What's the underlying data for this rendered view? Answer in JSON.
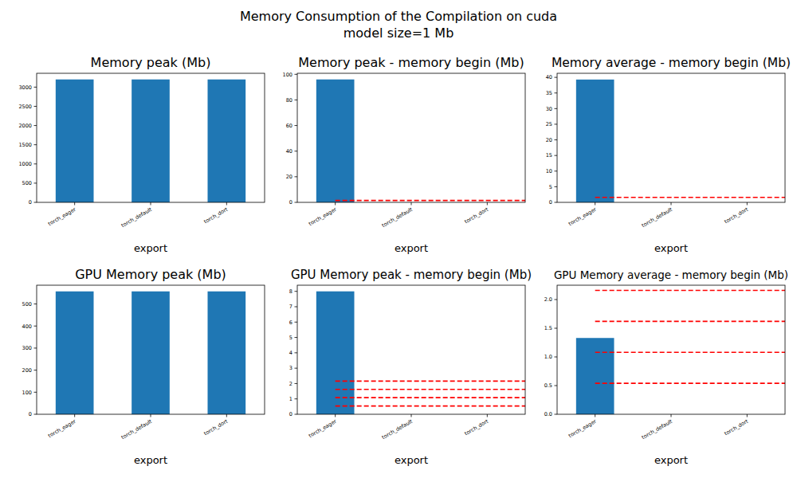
{
  "title": "Memory Consumption of the Compilation on cuda",
  "subtitle": "model size=1 Mb",
  "chart_data": [
    {
      "type": "bar",
      "title": "Memory peak (Mb)",
      "x_label": "export",
      "categories": [
        "torch_eager",
        "torch_default",
        "torch_dort"
      ],
      "values": [
        3200,
        3200,
        3200
      ],
      "color": "#1f77b4",
      "ylim": [
        0,
        3360
      ],
      "yticks": [
        0,
        500,
        1000,
        1500,
        2000,
        2500,
        3000
      ],
      "grid": false
    },
    {
      "type": "bar",
      "title": "Memory peak - memory begin (Mb)",
      "x_label": "export",
      "categories": [
        "torch_eager",
        "torch_default",
        "torch_dort"
      ],
      "values": [
        96,
        0,
        0
      ],
      "color": "#1f77b4",
      "ylim": [
        0,
        100.8
      ],
      "yticks": [
        0,
        20,
        40,
        60,
        80,
        100
      ],
      "grid": false,
      "hlines": [
        1.5
      ]
    },
    {
      "type": "bar",
      "title": "Memory average - memory begin (Mb)",
      "x_label": "export",
      "categories": [
        "torch_eager",
        "torch_default",
        "torch_dort"
      ],
      "values": [
        39.3,
        0,
        0
      ],
      "color": "#1f77b4",
      "ylim": [
        0,
        41.3
      ],
      "yticks": [
        0,
        5,
        10,
        15,
        20,
        25,
        30,
        35,
        40
      ],
      "grid": false,
      "hlines": [
        1.6
      ]
    },
    {
      "type": "bar",
      "title": "GPU Memory peak (Mb)",
      "x_label": "export",
      "categories": [
        "torch_eager",
        "torch_default",
        "torch_dort"
      ],
      "values": [
        557,
        557,
        557
      ],
      "color": "#1f77b4",
      "ylim": [
        0,
        585
      ],
      "yticks": [
        0,
        100,
        200,
        300,
        400,
        500
      ],
      "grid": false
    },
    {
      "type": "bar",
      "title": "GPU Memory peak - memory begin (Mb)",
      "x_label": "export",
      "categories": [
        "torch_eager",
        "torch_default",
        "torch_dort"
      ],
      "values": [
        8.0,
        0,
        0
      ],
      "color": "#1f77b4",
      "ylim": [
        0,
        8.4
      ],
      "yticks": [
        0,
        1,
        2,
        3,
        4,
        5,
        6,
        7,
        8
      ],
      "grid": false,
      "hlines": [
        0.54,
        1.08,
        1.62,
        2.16
      ]
    },
    {
      "type": "bar",
      "title": "GPU Memory average - memory begin (Mb)",
      "x_label": "export",
      "categories": [
        "torch_eager",
        "torch_default",
        "torch_dort"
      ],
      "values": [
        1.33,
        0,
        0
      ],
      "color": "#1f77b4",
      "ylim": [
        0,
        2.25
      ],
      "yticks": [
        {
          "value": 0,
          "label": "0.0"
        },
        {
          "value": 0.5,
          "label": "0.5"
        },
        {
          "value": 1,
          "label": "1.0"
        },
        {
          "value": 1.5,
          "label": "1.5"
        },
        {
          "value": 2,
          "label": "2.0"
        }
      ],
      "grid": false,
      "hlines": [
        0.54,
        1.08,
        1.62,
        2.16
      ]
    }
  ]
}
